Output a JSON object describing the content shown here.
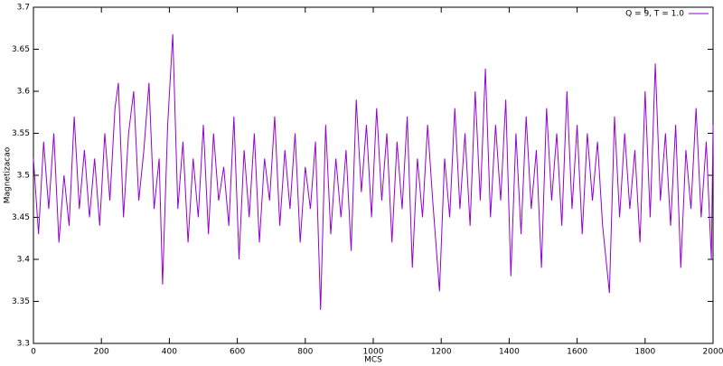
{
  "chart_data": {
    "type": "line",
    "x_label": "MCS",
    "y_label": "Magnetizacao",
    "xlim": [
      0,
      2000
    ],
    "xticks": [
      0,
      200,
      400,
      600,
      800,
      1000,
      1200,
      1400,
      1600,
      1800,
      2000
    ],
    "ylim": [
      3.3,
      3.7
    ],
    "yticks": [
      3.3,
      3.35,
      3.4,
      3.45,
      3.5,
      3.55,
      3.6,
      3.65,
      3.7
    ],
    "legend": "top-right",
    "grid": false,
    "x": [
      0,
      15,
      30,
      45,
      60,
      75,
      90,
      105,
      120,
      135,
      150,
      165,
      180,
      195,
      210,
      225,
      240,
      250,
      265,
      280,
      295,
      310,
      325,
      340,
      355,
      370,
      380,
      395,
      410,
      425,
      440,
      455,
      470,
      485,
      500,
      515,
      530,
      545,
      560,
      575,
      590,
      605,
      620,
      635,
      650,
      665,
      680,
      695,
      710,
      725,
      740,
      755,
      770,
      785,
      800,
      815,
      830,
      845,
      860,
      875,
      890,
      905,
      920,
      935,
      950,
      965,
      980,
      995,
      1010,
      1025,
      1040,
      1055,
      1070,
      1085,
      1100,
      1115,
      1130,
      1145,
      1160,
      1175,
      1195,
      1210,
      1225,
      1240,
      1255,
      1270,
      1285,
      1300,
      1315,
      1330,
      1345,
      1360,
      1375,
      1390,
      1405,
      1420,
      1435,
      1450,
      1465,
      1480,
      1495,
      1510,
      1525,
      1540,
      1555,
      1570,
      1585,
      1600,
      1615,
      1630,
      1645,
      1660,
      1675,
      1695,
      1710,
      1725,
      1740,
      1755,
      1770,
      1785,
      1800,
      1815,
      1830,
      1845,
      1860,
      1875,
      1890,
      1905,
      1920,
      1935,
      1950,
      1965,
      1980,
      1995,
      2000
    ],
    "series": [
      {
        "name": "Q = 9, T = 1.0",
        "color": "#9400d3",
        "values": [
          3.52,
          3.43,
          3.54,
          3.46,
          3.55,
          3.42,
          3.5,
          3.44,
          3.57,
          3.46,
          3.53,
          3.45,
          3.52,
          3.44,
          3.55,
          3.47,
          3.58,
          3.61,
          3.45,
          3.55,
          3.6,
          3.47,
          3.53,
          3.61,
          3.46,
          3.52,
          3.37,
          3.56,
          3.668,
          3.46,
          3.54,
          3.42,
          3.52,
          3.45,
          3.56,
          3.43,
          3.55,
          3.47,
          3.51,
          3.44,
          3.57,
          3.4,
          3.53,
          3.45,
          3.55,
          3.42,
          3.52,
          3.47,
          3.57,
          3.44,
          3.53,
          3.46,
          3.55,
          3.42,
          3.51,
          3.46,
          3.54,
          3.34,
          3.56,
          3.43,
          3.52,
          3.45,
          3.53,
          3.41,
          3.59,
          3.48,
          3.56,
          3.45,
          3.58,
          3.47,
          3.55,
          3.42,
          3.54,
          3.46,
          3.57,
          3.39,
          3.52,
          3.45,
          3.56,
          3.47,
          3.362,
          3.52,
          3.45,
          3.58,
          3.46,
          3.55,
          3.44,
          3.6,
          3.47,
          3.627,
          3.45,
          3.56,
          3.47,
          3.59,
          3.38,
          3.55,
          3.43,
          3.57,
          3.46,
          3.53,
          3.39,
          3.58,
          3.47,
          3.55,
          3.44,
          3.6,
          3.46,
          3.56,
          3.43,
          3.55,
          3.47,
          3.54,
          3.44,
          3.36,
          3.57,
          3.45,
          3.55,
          3.46,
          3.53,
          3.42,
          3.6,
          3.45,
          3.633,
          3.47,
          3.55,
          3.44,
          3.56,
          3.39,
          3.53,
          3.46,
          3.58,
          3.45,
          3.54,
          3.4,
          3.56
        ]
      }
    ]
  }
}
